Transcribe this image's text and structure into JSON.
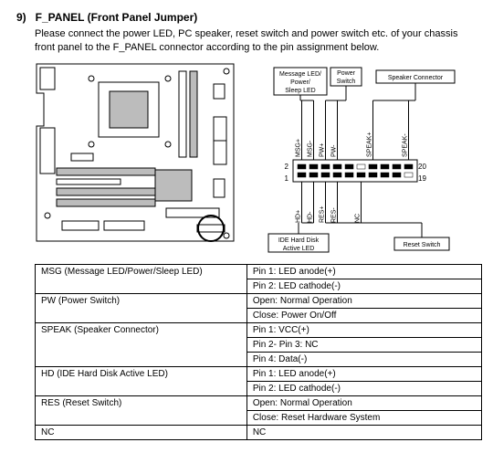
{
  "header": {
    "num": "9)",
    "title": "F_PANEL (Front Panel Jumper)"
  },
  "description": "Please connect the power LED, PC speaker, reset switch and power switch etc. of your chassis front panel to the F_PANEL connector according to the pin assignment below.",
  "diagram": {
    "boxes": {
      "msg": "Message LED/\nPower/\nSleep LED",
      "pwr": "Power\nSwitch",
      "spk": "Speaker Connector",
      "ide": "IDE Hard Disk\nActive LED",
      "reset": "Reset Switch"
    },
    "pin_labels_top": [
      "MSG+",
      "MSG-",
      "PW+",
      "PW-",
      "SPEAK+",
      "SPEAK-"
    ],
    "pin_labels_bottom": [
      "HD+",
      "HD-",
      "RES+",
      "RES-",
      "NC"
    ],
    "corner_nums": {
      "tl": "2",
      "tr": "20",
      "bl": "1",
      "br": "19"
    },
    "header_cols": 10,
    "colors": {
      "line": "#000000",
      "fill": "#ffffff",
      "shade": "#bcbcbc"
    }
  },
  "table": {
    "rows": [
      {
        "label": "MSG (Message LED/Power/Sleep LED)",
        "lines": [
          "Pin 1: LED anode(+)",
          "Pin 2: LED cathode(-)"
        ]
      },
      {
        "label": "PW (Power Switch)",
        "lines": [
          "Open: Normal Operation",
          "Close: Power On/Off"
        ]
      },
      {
        "label": "SPEAK (Speaker Connector)",
        "lines": [
          "Pin 1: VCC(+)",
          "Pin 2- Pin 3: NC",
          "Pin 4: Data(-)"
        ]
      },
      {
        "label": "HD (IDE Hard Disk Active LED)",
        "lines": [
          "Pin 1: LED anode(+)",
          "Pin 2: LED cathode(-)"
        ]
      },
      {
        "label": "RES (Reset Switch)",
        "lines": [
          "Open: Normal Operation",
          "Close: Reset Hardware System"
        ]
      },
      {
        "label": "NC",
        "lines": [
          "NC"
        ]
      }
    ]
  }
}
